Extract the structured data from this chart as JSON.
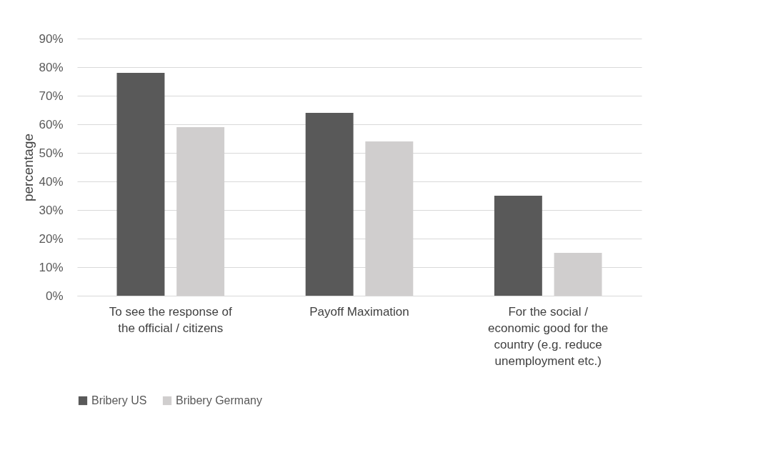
{
  "chart_data": {
    "type": "bar",
    "categories": [
      "To see the response of the official / citizens",
      "Payoff Maximation",
      "For the social / economic good for the country (e.g. reduce unemployment etc.)"
    ],
    "series": [
      {
        "name": "Bribery US",
        "color": "#595959",
        "values": [
          78,
          64,
          35
        ]
      },
      {
        "name": "Bribery Germany",
        "color": "#d0cece",
        "values": [
          59,
          54,
          15
        ]
      }
    ],
    "ylabel": "percentage",
    "ylim": [
      0,
      90
    ],
    "yticks": [
      {
        "value": 0,
        "label": "0%"
      },
      {
        "value": 10,
        "label": "10%"
      },
      {
        "value": 20,
        "label": "20%"
      },
      {
        "value": 30,
        "label": "30%"
      },
      {
        "value": 40,
        "label": "40%"
      },
      {
        "value": 50,
        "label": "50%"
      },
      {
        "value": 60,
        "label": "60%"
      },
      {
        "value": 70,
        "label": "70%"
      },
      {
        "value": 80,
        "label": "80%"
      },
      {
        "value": 90,
        "label": "90%"
      }
    ],
    "grid": "y",
    "legend": "bottom"
  }
}
